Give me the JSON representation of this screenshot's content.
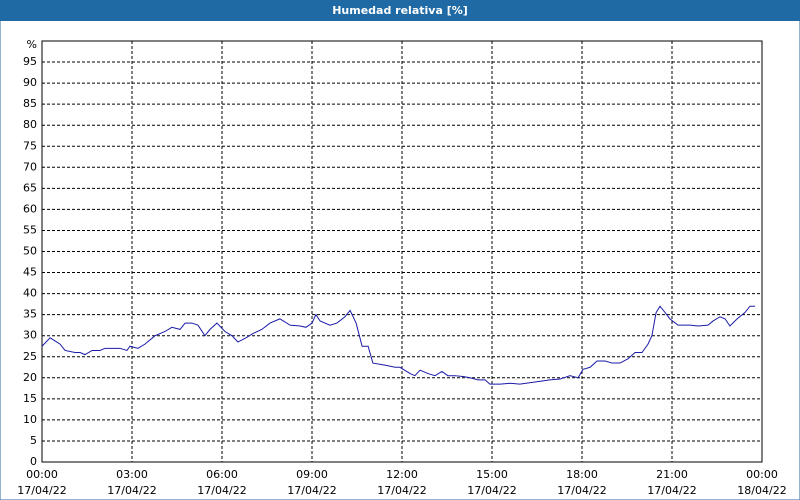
{
  "chart_data": {
    "type": "line",
    "title": "Humedad relativa [%]",
    "y_label": "%",
    "color": "#1a1aa8",
    "grid": true,
    "xlim": [
      0,
      24
    ],
    "ylim": [
      0,
      100
    ],
    "yticks": [
      0,
      5,
      10,
      15,
      20,
      25,
      30,
      35,
      40,
      45,
      50,
      55,
      60,
      65,
      70,
      75,
      80,
      85,
      90,
      95
    ],
    "xticks": [
      {
        "value": 0,
        "label": "00:00",
        "date": "17/04/22"
      },
      {
        "value": 3,
        "label": "03:00",
        "date": "17/04/22"
      },
      {
        "value": 6,
        "label": "06:00",
        "date": "17/04/22"
      },
      {
        "value": 9,
        "label": "09:00",
        "date": "17/04/22"
      },
      {
        "value": 12,
        "label": "12:00",
        "date": "17/04/22"
      },
      {
        "value": 15,
        "label": "15:00",
        "date": "17/04/22"
      },
      {
        "value": 18,
        "label": "18:00",
        "date": "17/04/22"
      },
      {
        "value": 21,
        "label": "21:00",
        "date": "17/04/22"
      },
      {
        "value": 24,
        "label": "00:00",
        "date": "18/04/22"
      }
    ],
    "x": [
      0,
      0.27,
      0.6,
      0.77,
      1.1,
      1.27,
      1.43,
      1.67,
      1.93,
      2.1,
      2.6,
      2.83,
      2.93,
      3.2,
      3.43,
      3.77,
      4.1,
      4.33,
      4.6,
      4.77,
      5,
      5.2,
      5.43,
      5.6,
      5.83,
      6.1,
      6.33,
      6.53,
      6.8,
      7.03,
      7.33,
      7.6,
      7.93,
      8.27,
      8.6,
      8.8,
      9,
      9.13,
      9.27,
      9.6,
      9.83,
      10.1,
      10.27,
      10.47,
      10.67,
      10.87,
      11.03,
      11.43,
      11.77,
      11.93,
      12.27,
      12.43,
      12.6,
      12.87,
      13.1,
      13.33,
      13.53,
      13.77,
      14.03,
      14.27,
      14.53,
      14.77,
      14.93,
      15.27,
      15.6,
      15.93,
      16.43,
      16.93,
      17.27,
      17.6,
      17.87,
      18.03,
      18.27,
      18.5,
      18.77,
      19,
      19.27,
      19.53,
      19.77,
      20,
      20.2,
      20.33,
      20.47,
      20.6,
      20.77,
      20.93,
      21.2,
      21.6,
      21.87,
      22.2,
      22.37,
      22.6,
      22.77,
      22.93,
      23.17,
      23.43,
      23.6,
      23.77
    ],
    "values": [
      27.5,
      29.5,
      28,
      26.5,
      26,
      26,
      25.5,
      26.5,
      26.5,
      27,
      27,
      26.5,
      27.5,
      27,
      28,
      30,
      31,
      32,
      31.5,
      33,
      33,
      32.5,
      30,
      31.5,
      33,
      31,
      30,
      28.5,
      29.5,
      30.5,
      31.5,
      33,
      34,
      32.5,
      32.3,
      32,
      33,
      35,
      33.5,
      32.5,
      33,
      34.5,
      36,
      33,
      27.5,
      27.5,
      23.5,
      23,
      22.5,
      22.5,
      21,
      20.5,
      21.8,
      21,
      20.5,
      21.5,
      20.5,
      20.5,
      20.3,
      20,
      19.5,
      19.5,
      18.5,
      18.5,
      18.7,
      18.5,
      19,
      19.5,
      19.7,
      20.5,
      20,
      22,
      22.5,
      24,
      24,
      23.5,
      23.5,
      24.5,
      26,
      26,
      28,
      30,
      35.5,
      37,
      35.5,
      34,
      32.5,
      32.5,
      32.3,
      32.5,
      33.5,
      34.5,
      34,
      32.3,
      34,
      35.5,
      37,
      37
    ]
  }
}
